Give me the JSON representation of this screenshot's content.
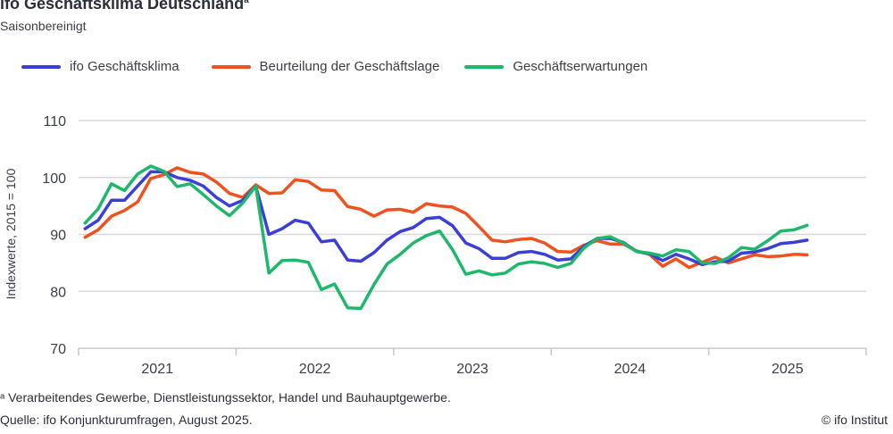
{
  "header": {
    "title": "ifo Geschäftsklima Deutschland",
    "title_sup": "a",
    "subtitle": "Saisonbereinigt"
  },
  "footer": {
    "footnote": "ᵃ Verarbeitendes Gewerbe, Dienstleistungssektor, Handel und Bauhauptgewerbe.",
    "source": "Quelle: ifo Konjunkturumfragen, August 2025.",
    "copyright": "© ifo Institut"
  },
  "chart_data": {
    "type": "line",
    "title": "ifo Geschäftsklima Deutschland",
    "ylabel": "Indexwerte, 2015 = 100",
    "xlabel": "",
    "ylim": [
      70,
      110
    ],
    "yticks": [
      70,
      80,
      90,
      100,
      110
    ],
    "xticks": [
      "2021",
      "2022",
      "2023",
      "2024",
      "2025"
    ],
    "x_start": "2021-01",
    "x_end": "2025-08",
    "frequency": "monthly",
    "grid": true,
    "legend": "top",
    "series": [
      {
        "name": "ifo Geschäftsklima",
        "color": "#3b3fd8",
        "values": [
          91.0,
          92.5,
          96.0,
          96.0,
          98.5,
          101.0,
          101.0,
          100.0,
          99.5,
          98.5,
          96.5,
          95.0,
          96.0,
          98.5,
          90.0,
          91.0,
          92.5,
          92.0,
          88.7,
          89.0,
          85.5,
          85.3,
          86.8,
          89.0,
          90.5,
          91.2,
          92.8,
          93.0,
          91.5,
          88.5,
          87.5,
          85.8,
          85.8,
          86.8,
          87.0,
          86.5,
          85.5,
          85.7,
          87.9,
          89.3,
          89.3,
          88.6,
          87.0,
          86.6,
          85.4,
          86.5,
          85.7,
          84.7,
          85.2,
          85.3,
          86.7,
          86.9,
          87.5,
          88.4,
          88.6,
          89.0
        ]
      },
      {
        "name": "Beurteilung der Geschäftslage",
        "color": "#f0521e",
        "values": [
          89.5,
          90.8,
          93.2,
          94.2,
          95.7,
          99.8,
          100.5,
          101.7,
          100.9,
          100.6,
          99.2,
          97.2,
          96.5,
          98.7,
          97.2,
          97.3,
          99.6,
          99.3,
          97.8,
          97.7,
          94.9,
          94.4,
          93.2,
          94.3,
          94.4,
          93.9,
          95.4,
          95.0,
          94.8,
          93.7,
          91.4,
          89.0,
          88.7,
          89.1,
          89.3,
          88.5,
          87.0,
          86.9,
          88.1,
          88.9,
          88.3,
          88.3,
          87.1,
          86.5,
          84.4,
          85.7,
          84.2,
          85.1,
          86.0,
          85.0,
          85.7,
          86.4,
          86.1,
          86.2,
          86.5,
          86.4
        ]
      },
      {
        "name": "Geschäftserwartungen",
        "color": "#1eb86a",
        "values": [
          92.0,
          94.5,
          98.9,
          97.7,
          100.6,
          102.0,
          101.1,
          98.4,
          98.9,
          97.0,
          95.0,
          93.3,
          95.5,
          98.5,
          83.2,
          85.4,
          85.5,
          85.1,
          80.3,
          81.3,
          77.1,
          77.0,
          81.2,
          84.8,
          86.5,
          88.5,
          89.8,
          90.6,
          87.3,
          83.0,
          83.6,
          82.9,
          83.2,
          84.8,
          85.2,
          84.9,
          84.2,
          84.9,
          87.6,
          89.3,
          89.6,
          88.5,
          87.0,
          86.7,
          86.2,
          87.3,
          87.0,
          85.0,
          84.9,
          85.9,
          87.7,
          87.4,
          88.9,
          90.6,
          90.8,
          91.6
        ]
      }
    ]
  }
}
